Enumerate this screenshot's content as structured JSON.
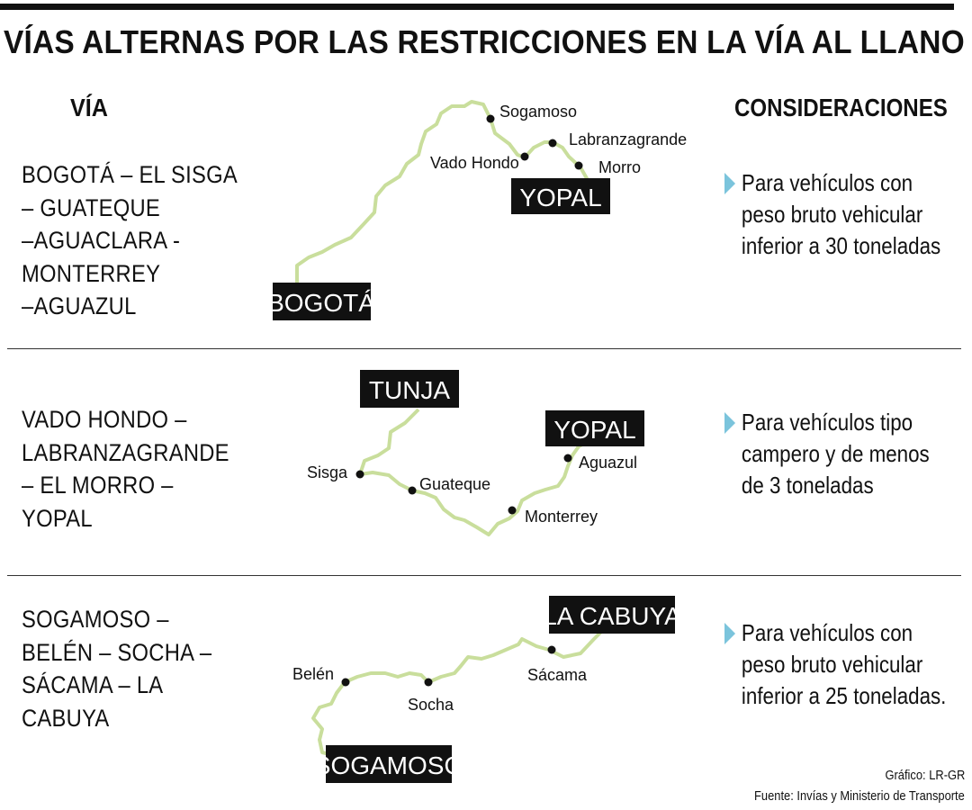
{
  "title": "VÍAS ALTERNAS POR LAS RESTRICCIONES EN LA VÍA AL LLANO",
  "headers": {
    "via": "VÍA",
    "consideraciones": "CONSIDERACIONES"
  },
  "colors": {
    "route_line": "#c9de9c",
    "arrow": "#7bc4dc",
    "tag_bg": "#111111",
    "text": "#111111"
  },
  "rows": [
    {
      "route_lines": [
        "BOGOTÁ – EL SISGA",
        "– GUATEQUE",
        "–AGUACLARA -",
        "MONTERREY",
        "–AGUAZUL"
      ],
      "map": {
        "tags": [
          "YOPAL",
          "BOGOTÁ"
        ],
        "places": [
          "Sogamoso",
          "Labranzagrande",
          "Vado Hondo",
          "Morro"
        ]
      },
      "consideration_lines": [
        "Para vehículos con",
        "peso bruto vehicular",
        "inferior a 30 toneladas"
      ]
    },
    {
      "route_lines": [
        "VADO HONDO –",
        "LABRANZAGRANDE",
        "– EL MORRO –",
        "YOPAL"
      ],
      "map": {
        "tags": [
          "TUNJA",
          "YOPAL"
        ],
        "places": [
          "Sisga",
          "Guateque",
          "Aguazul",
          "Monterrey"
        ]
      },
      "consideration_lines": [
        "Para vehículos tipo",
        "campero y de menos",
        "de 3 toneladas"
      ]
    },
    {
      "route_lines": [
        "SOGAMOSO –",
        "BELÉN – SOCHA –",
        "SÁCAMA – LA",
        "CABUYA"
      ],
      "map": {
        "tags": [
          "LA CABUYA",
          "SOGAMOSO"
        ],
        "places": [
          "Belén",
          "Socha",
          "Sácama"
        ]
      },
      "consideration_lines": [
        "Para vehículos con",
        "peso bruto vehicular",
        "inferior a 25 toneladas."
      ]
    }
  ],
  "credits": {
    "grafico": "Gráfico: LR-GR",
    "fuente": "Fuente: Invías y Ministerio de Transporte"
  }
}
